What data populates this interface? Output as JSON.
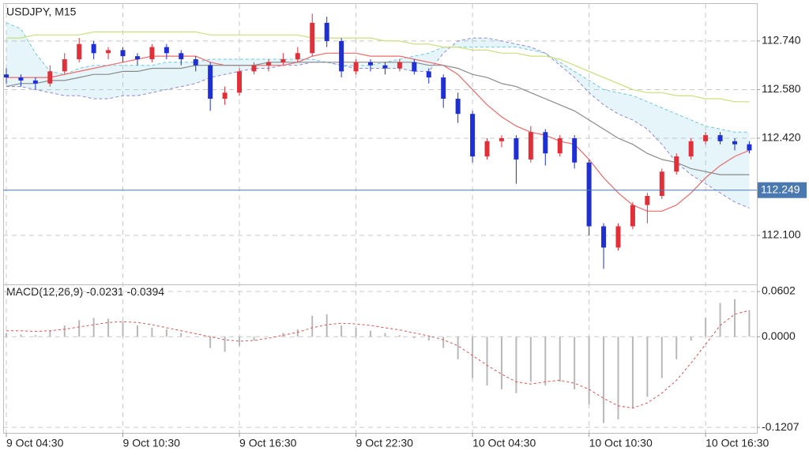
{
  "chart_data": [
    {
      "type": "candlestick",
      "title": "USDJPY, M15",
      "x": [
        "9 Oct 04:30",
        "9 Oct 05:15",
        "9 Oct 06:00",
        "9 Oct 06:45",
        "9 Oct 07:30",
        "9 Oct 08:15",
        "9 Oct 09:00",
        "9 Oct 09:45",
        "9 Oct 10:30",
        "9 Oct 11:15",
        "9 Oct 12:00",
        "9 Oct 12:45",
        "9 Oct 13:30",
        "9 Oct 14:15",
        "9 Oct 15:00",
        "9 Oct 15:45",
        "9 Oct 16:30",
        "9 Oct 17:15",
        "9 Oct 18:00",
        "9 Oct 18:45",
        "9 Oct 19:30",
        "9 Oct 20:15",
        "9 Oct 21:00",
        "9 Oct 21:45",
        "9 Oct 22:30",
        "9 Oct 23:15",
        "10 Oct 00:00",
        "10 Oct 00:45",
        "10 Oct 01:30",
        "10 Oct 02:15",
        "10 Oct 03:00",
        "10 Oct 03:45",
        "10 Oct 04:30",
        "10 Oct 05:15",
        "10 Oct 06:00",
        "10 Oct 06:45",
        "10 Oct 07:30",
        "10 Oct 08:15",
        "10 Oct 09:00",
        "10 Oct 09:45",
        "10 Oct 10:30",
        "10 Oct 11:15",
        "10 Oct 12:00",
        "10 Oct 12:45",
        "10 Oct 13:30",
        "10 Oct 14:15",
        "10 Oct 15:00",
        "10 Oct 15:45",
        "10 Oct 16:30",
        "10 Oct 17:15",
        "10 Oct 18:00",
        "10 Oct 18:45"
      ],
      "ohlc": [
        [
          112.63,
          112.65,
          112.6,
          112.62
        ],
        [
          112.62,
          112.63,
          112.59,
          112.61
        ],
        [
          112.61,
          112.62,
          112.58,
          112.6
        ],
        [
          112.6,
          112.66,
          112.59,
          112.64
        ],
        [
          112.64,
          112.7,
          112.63,
          112.68
        ],
        [
          112.68,
          112.75,
          112.67,
          112.73
        ],
        [
          112.73,
          112.74,
          112.68,
          112.7
        ],
        [
          112.7,
          112.72,
          112.68,
          112.71
        ],
        [
          112.71,
          112.72,
          112.67,
          112.69
        ],
        [
          112.69,
          112.7,
          112.66,
          112.68
        ],
        [
          112.68,
          112.73,
          112.67,
          112.72
        ],
        [
          112.72,
          112.73,
          112.68,
          112.7
        ],
        [
          112.7,
          112.71,
          112.66,
          112.68
        ],
        [
          112.68,
          112.69,
          112.64,
          112.66
        ],
        [
          112.66,
          112.67,
          112.51,
          112.55
        ],
        [
          112.55,
          112.59,
          112.53,
          112.57
        ],
        [
          112.57,
          112.65,
          112.56,
          112.64
        ],
        [
          112.64,
          112.67,
          112.63,
          112.66
        ],
        [
          112.66,
          112.68,
          112.64,
          112.67
        ],
        [
          112.67,
          112.7,
          112.66,
          112.68
        ],
        [
          112.68,
          112.72,
          112.67,
          112.7
        ],
        [
          112.7,
          112.83,
          112.69,
          112.8
        ],
        [
          112.8,
          112.82,
          112.72,
          112.74
        ],
        [
          112.74,
          112.75,
          112.62,
          112.64
        ],
        [
          112.64,
          112.68,
          112.63,
          112.67
        ],
        [
          112.67,
          112.68,
          112.64,
          112.66
        ],
        [
          112.66,
          112.67,
          112.63,
          112.65
        ],
        [
          112.65,
          112.68,
          112.64,
          112.67
        ],
        [
          112.67,
          112.68,
          112.63,
          112.64
        ],
        [
          112.64,
          112.65,
          112.6,
          112.62
        ],
        [
          112.62,
          112.63,
          112.52,
          112.55
        ],
        [
          112.55,
          112.57,
          112.47,
          112.5
        ],
        [
          112.5,
          112.51,
          112.34,
          112.36
        ],
        [
          112.36,
          112.42,
          112.35,
          112.41
        ],
        [
          112.41,
          112.43,
          112.39,
          112.42
        ],
        [
          112.42,
          112.43,
          112.27,
          112.35
        ],
        [
          112.35,
          112.46,
          112.34,
          112.44
        ],
        [
          112.44,
          112.45,
          112.33,
          112.37
        ],
        [
          112.37,
          112.43,
          112.36,
          112.42
        ],
        [
          112.42,
          112.43,
          112.32,
          112.34
        ],
        [
          112.34,
          112.35,
          112.1,
          112.13
        ],
        [
          112.13,
          112.14,
          111.99,
          112.06
        ],
        [
          112.06,
          112.14,
          112.05,
          112.13
        ],
        [
          112.13,
          112.21,
          112.12,
          112.2
        ],
        [
          112.2,
          112.24,
          112.14,
          112.23
        ],
        [
          112.23,
          112.32,
          112.22,
          112.31
        ],
        [
          112.31,
          112.37,
          112.3,
          112.36
        ],
        [
          112.36,
          112.42,
          112.35,
          112.41
        ],
        [
          112.41,
          112.44,
          112.4,
          112.43
        ],
        [
          112.43,
          112.44,
          112.4,
          112.41
        ],
        [
          112.41,
          112.42,
          112.38,
          112.4
        ],
        [
          112.4,
          112.41,
          112.37,
          112.38
        ]
      ],
      "up_color": "#e0303a",
      "down_color": "#1f2fd6",
      "series": [
        {
          "color": "#ee6a6a",
          "values": [
            112.62,
            112.62,
            112.62,
            112.62,
            112.63,
            112.64,
            112.65,
            112.66,
            112.67,
            112.68,
            112.69,
            112.69,
            112.69,
            112.69,
            112.67,
            112.66,
            112.66,
            112.66,
            112.66,
            112.66,
            112.67,
            112.69,
            112.7,
            112.7,
            112.7,
            112.69,
            112.69,
            112.69,
            112.68,
            112.67,
            112.66,
            112.63,
            112.58,
            112.53,
            112.49,
            112.46,
            112.44,
            112.43,
            112.41,
            112.4,
            112.35,
            112.29,
            112.24,
            112.2,
            112.18,
            112.18,
            112.2,
            112.24,
            112.29,
            112.33,
            112.36,
            112.38
          ]
        },
        {
          "color": "#8a8a8a",
          "values": [
            112.59,
            112.6,
            112.6,
            112.61,
            112.61,
            112.62,
            112.63,
            112.63,
            112.64,
            112.64,
            112.65,
            112.65,
            112.65,
            112.66,
            112.66,
            112.66,
            112.66,
            112.66,
            112.67,
            112.67,
            112.67,
            112.67,
            112.67,
            112.67,
            112.67,
            112.67,
            112.67,
            112.67,
            112.67,
            112.66,
            112.66,
            112.65,
            112.63,
            112.62,
            112.6,
            112.59,
            112.57,
            112.55,
            112.53,
            112.51,
            112.48,
            112.45,
            112.42,
            112.4,
            112.37,
            112.35,
            112.34,
            112.32,
            112.31,
            112.3,
            112.3,
            112.3
          ]
        },
        {
          "color": "#c9df7c",
          "values": [
            112.75,
            112.75,
            112.76,
            112.76,
            112.76,
            112.76,
            112.77,
            112.77,
            112.77,
            112.77,
            112.77,
            112.77,
            112.77,
            112.77,
            112.76,
            112.76,
            112.76,
            112.76,
            112.76,
            112.76,
            112.76,
            112.75,
            112.75,
            112.75,
            112.75,
            112.75,
            112.74,
            112.74,
            112.73,
            112.73,
            112.72,
            112.72,
            112.71,
            112.71,
            112.7,
            112.7,
            112.69,
            112.69,
            112.68,
            112.66,
            112.64,
            112.62,
            112.6,
            112.58,
            112.57,
            112.57,
            112.56,
            112.56,
            112.55,
            112.55,
            112.54,
            112.54
          ]
        }
      ],
      "cloud": {
        "span_a": {
          "color": "#6fc8e0",
          "values": [
            112.8,
            112.78,
            112.7,
            112.64,
            112.63,
            112.65,
            112.66,
            112.66,
            112.66,
            112.66,
            112.66,
            112.67,
            112.67,
            112.67,
            112.68,
            112.68,
            112.68,
            112.68,
            112.68,
            112.68,
            112.68,
            112.68,
            112.67,
            112.66,
            112.66,
            112.66,
            112.67,
            112.68,
            112.69,
            112.7,
            112.72,
            112.72,
            112.72,
            112.72,
            112.72,
            112.72,
            112.71,
            112.7,
            112.67,
            112.64,
            112.61,
            112.58,
            112.57,
            112.56,
            112.54,
            112.52,
            112.5,
            112.48,
            112.46,
            112.45,
            112.44,
            112.44
          ]
        },
        "span_b": {
          "color": "#9488d6",
          "values": [
            112.59,
            112.59,
            112.58,
            112.57,
            112.56,
            112.56,
            112.55,
            112.55,
            112.56,
            112.56,
            112.57,
            112.58,
            112.59,
            112.6,
            112.62,
            112.63,
            112.64,
            112.65,
            112.65,
            112.66,
            112.66,
            112.67,
            112.67,
            112.66,
            112.65,
            112.65,
            112.65,
            112.65,
            112.64,
            112.64,
            112.7,
            112.74,
            112.75,
            112.75,
            112.74,
            112.73,
            112.72,
            112.7,
            112.66,
            112.62,
            112.57,
            112.53,
            112.5,
            112.48,
            112.45,
            112.4,
            112.34,
            112.3,
            112.27,
            112.24,
            112.21,
            112.19
          ]
        }
      },
      "ylim": [
        111.944,
        112.862
      ],
      "yticks": [
        {
          "value": 112.74,
          "label": "112.740"
        },
        {
          "value": 112.58,
          "label": "112.580"
        },
        {
          "value": 112.42,
          "label": "112.420"
        },
        {
          "value": 112.1,
          "label": "112.100"
        }
      ],
      "xticks": [
        "9 Oct 04:30",
        "9 Oct 10:30",
        "9 Oct 16:30",
        "9 Oct 22:30",
        "10 Oct 04:30",
        "10 Oct 10:30",
        "10 Oct 16:30"
      ],
      "current_price": 112.249,
      "current_price_color": "#4a78b0",
      "grid": true
    },
    {
      "type": "macd",
      "title": "MACD(12,26,9)",
      "macd": -0.0231,
      "signal": -0.0394,
      "histogram": {
        "color": "#b8b8b8",
        "values": [
          0.005,
          0.003,
          0.002,
          0.008,
          0.015,
          0.022,
          0.025,
          0.024,
          0.02,
          0.015,
          0.012,
          0.01,
          0.005,
          0.0,
          -0.015,
          -0.02,
          -0.012,
          -0.005,
          0.0,
          0.005,
          0.01,
          0.028,
          0.03,
          0.015,
          0.012,
          0.008,
          0.005,
          0.002,
          -0.002,
          -0.005,
          -0.015,
          -0.03,
          -0.055,
          -0.065,
          -0.07,
          -0.075,
          -0.06,
          -0.065,
          -0.06,
          -0.07,
          -0.09,
          -0.115,
          -0.11,
          -0.095,
          -0.08,
          -0.055,
          -0.03,
          -0.005,
          0.025,
          0.045,
          0.05,
          0.035
        ]
      },
      "signal_line": {
        "color": "#e05050",
        "values": [
          0.008,
          0.008,
          0.007,
          0.008,
          0.01,
          0.013,
          0.016,
          0.019,
          0.02,
          0.019,
          0.016,
          0.012,
          0.008,
          0.004,
          0.0,
          -0.004,
          -0.006,
          -0.005,
          -0.002,
          0.002,
          0.006,
          0.012,
          0.016,
          0.018,
          0.017,
          0.015,
          0.012,
          0.009,
          0.005,
          0.001,
          -0.004,
          -0.012,
          -0.025,
          -0.038,
          -0.05,
          -0.06,
          -0.063,
          -0.06,
          -0.058,
          -0.062,
          -0.07,
          -0.082,
          -0.092,
          -0.095,
          -0.088,
          -0.075,
          -0.058,
          -0.035,
          -0.01,
          0.015,
          0.03,
          0.035
        ]
      },
      "ylim": [
        -0.128,
        0.0676
      ],
      "yticks": [
        0.0602,
        {
          "value": 0,
          "label": "0.0000"
        },
        -0.1207
      ],
      "grid": true
    }
  ]
}
